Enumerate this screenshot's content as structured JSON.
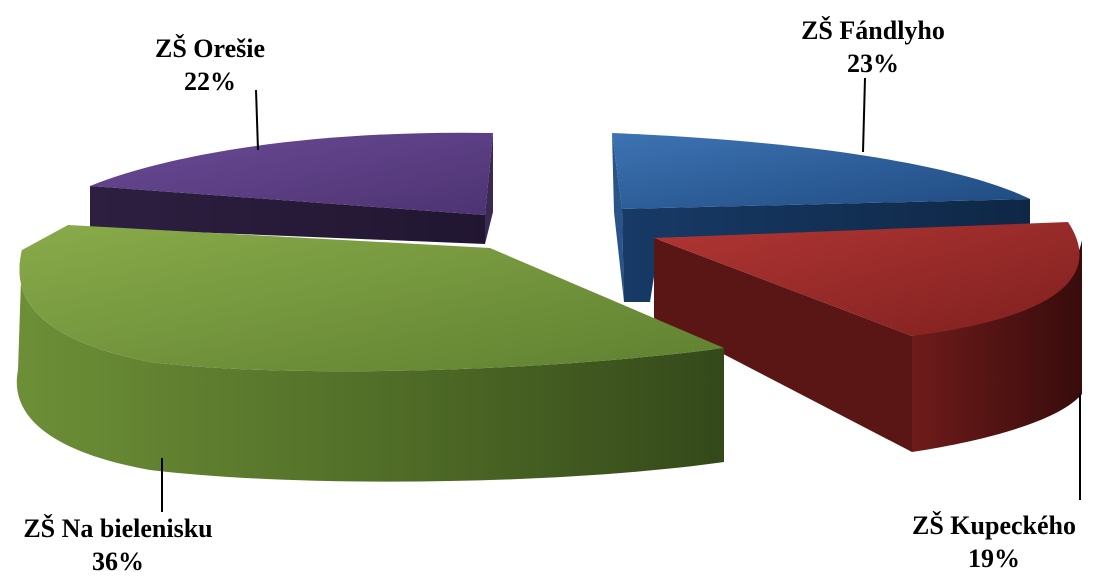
{
  "chart_data": {
    "type": "pie",
    "title": "",
    "slices": [
      {
        "label": "ZŠ Fándlyho",
        "value": 23,
        "value_label": "23%",
        "color": "#2e5f9c"
      },
      {
        "label": "ZŠ Kupeckého",
        "value": 19,
        "value_label": "19%",
        "color": "#9b2c2a"
      },
      {
        "label": "ZŠ Na bielenisku",
        "value": 36,
        "value_label": "36%",
        "color": "#73973a"
      },
      {
        "label": "ZŠ Orešie",
        "value": 22,
        "value_label": "22%",
        "color": "#5e3f86"
      }
    ],
    "style": "3d-exploded",
    "legend": "none"
  }
}
